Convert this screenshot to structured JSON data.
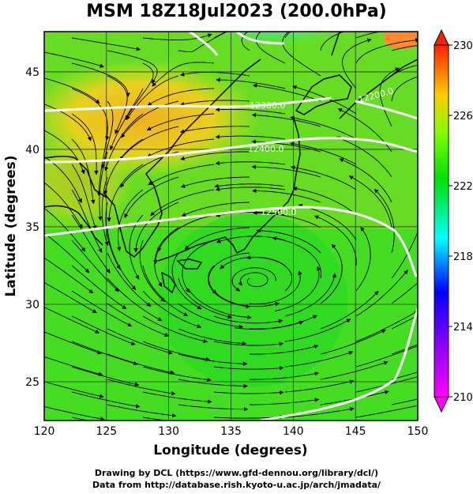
{
  "title": "MSM 18Z18Jul2023 (200.0hPa)",
  "x_axis": {
    "label": "Longitude (degrees)",
    "range": [
      120,
      150
    ],
    "ticks": [
      120,
      125,
      130,
      135,
      140,
      145,
      150
    ]
  },
  "y_axis": {
    "label": "Latitude  (degrees)",
    "range": [
      22.5,
      47.6
    ],
    "ticks": [
      25,
      30,
      35,
      40,
      45
    ]
  },
  "colorbar": {
    "range": [
      210,
      230
    ],
    "ticks": [
      210,
      214,
      218,
      222,
      226,
      230
    ],
    "colors": [
      "#ff00ff",
      "#0000ff",
      "#00ffff",
      "#00ff00",
      "#ffff00",
      "#ff8000",
      "#ff0000"
    ]
  },
  "contours": [
    {
      "label": "12300.0",
      "lat": 43.2
    },
    {
      "label": "12200.0",
      "lat": 43.0
    },
    {
      "label": "12400.0",
      "lat": 40.6
    },
    {
      "label": "12500.0",
      "lat": 36.8
    }
  ],
  "features": {
    "vortex_center": {
      "lon": 137.0,
      "lat": 31.5
    }
  },
  "credits": {
    "line1": "Drawing by DCL (https://www.gfd-dennou.org/library/dcl/)",
    "line2": "Data from http://database.rish.kyoto-u.ac.jp/arch/jmadata/"
  }
}
